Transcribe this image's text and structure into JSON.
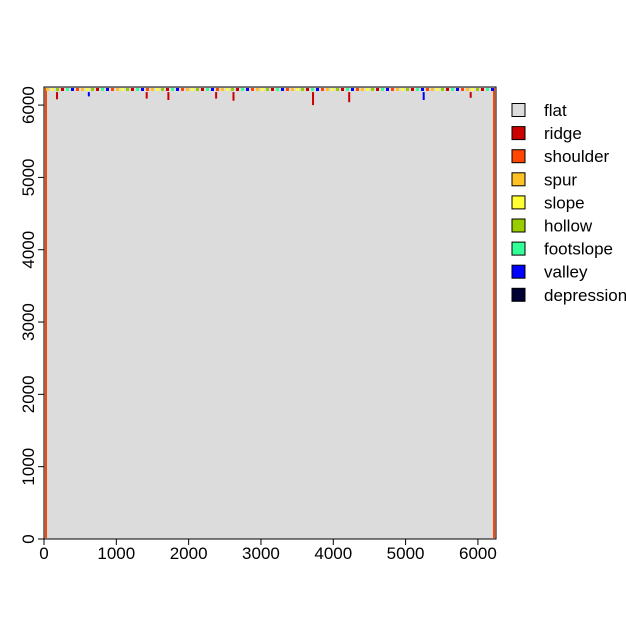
{
  "chart_data": {
    "type": "heatmap",
    "title": "",
    "xlabel": "",
    "ylabel": "",
    "xlim": [
      0,
      6250
    ],
    "ylim": [
      0,
      6250
    ],
    "x_ticks": [
      0,
      1000,
      2000,
      3000,
      4000,
      5000,
      6000
    ],
    "y_ticks": [
      0,
      1000,
      2000,
      3000,
      4000,
      5000,
      6000
    ],
    "background_class": "flat",
    "legend": {
      "position": "right",
      "entries": [
        {
          "label": "flat",
          "color": "#DCDCDC"
        },
        {
          "label": "ridge",
          "color": "#CC0000"
        },
        {
          "label": "shoulder",
          "color": "#FF4500"
        },
        {
          "label": "spur",
          "color": "#FFC125"
        },
        {
          "label": "slope",
          "color": "#FFFF33"
        },
        {
          "label": "hollow",
          "color": "#9ACD00"
        },
        {
          "label": "footslope",
          "color": "#33FF99"
        },
        {
          "label": "valley",
          "color": "#0000FF"
        },
        {
          "label": "depression",
          "color": "#000033"
        }
      ]
    },
    "features": [
      {
        "class": "ridge",
        "x": 180,
        "y_top": 6180,
        "y_bottom": 6080
      },
      {
        "class": "valley",
        "x": 620,
        "y_top": 6180,
        "y_bottom": 6120
      },
      {
        "class": "ridge",
        "x": 1420,
        "y_top": 6180,
        "y_bottom": 6090
      },
      {
        "class": "ridge",
        "x": 1720,
        "y_top": 6180,
        "y_bottom": 6070
      },
      {
        "class": "ridge",
        "x": 2380,
        "y_top": 6180,
        "y_bottom": 6090
      },
      {
        "class": "ridge",
        "x": 2620,
        "y_top": 6180,
        "y_bottom": 6060
      },
      {
        "class": "ridge",
        "x": 3720,
        "y_top": 6180,
        "y_bottom": 6000
      },
      {
        "class": "ridge",
        "x": 4220,
        "y_top": 6180,
        "y_bottom": 6040
      },
      {
        "class": "valley",
        "x": 5250,
        "y_top": 6180,
        "y_bottom": 6070
      },
      {
        "class": "ridge",
        "x": 5900,
        "y_top": 6180,
        "y_bottom": 6100
      }
    ]
  }
}
